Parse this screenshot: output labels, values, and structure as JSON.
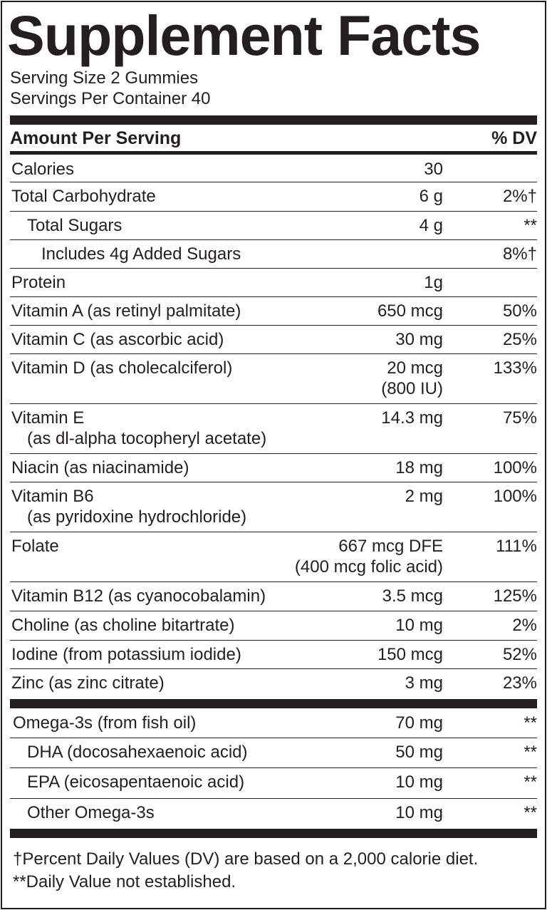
{
  "title": "Supplement Facts",
  "serving_size": "Serving Size 2 Gummies",
  "servings_per_container": "Servings Per Container 40",
  "header": {
    "amount": "Amount Per Serving",
    "dv": "% DV"
  },
  "section1": [
    {
      "name": "Calories",
      "amount": "30",
      "dv": "",
      "indent": 0
    },
    {
      "name": "Total Carbohydrate",
      "amount": "6 g",
      "dv": "2%†",
      "indent": 0
    },
    {
      "name": "Total Sugars",
      "amount": "4 g",
      "dv": "**",
      "indent": 1
    },
    {
      "name": "Includes 4g Added Sugars",
      "amount": "",
      "dv": "8%†",
      "indent": 2
    },
    {
      "name": "Protein",
      "amount": "1g",
      "dv": "",
      "indent": 0
    },
    {
      "name": "Vitamin A (as retinyl palmitate)",
      "amount": "650 mcg",
      "dv": "50%",
      "indent": 0
    },
    {
      "name": "Vitamin C (as ascorbic acid)",
      "amount": "30 mg",
      "dv": "25%",
      "indent": 0
    },
    {
      "name": "Vitamin D (as cholecalciferol)",
      "amount": "20 mcg",
      "amount2": "(800 IU)",
      "dv": "133%",
      "indent": 0
    },
    {
      "name": "Vitamin E",
      "sub": "(as dl-alpha tocopheryl acetate)",
      "amount": "14.3 mg",
      "dv": "75%",
      "indent": 0
    },
    {
      "name": "Niacin (as niacinamide)",
      "amount": "18 mg",
      "dv": "100%",
      "indent": 0
    },
    {
      "name": "Vitamin B6",
      "sub": "(as pyridoxine hydrochloride)",
      "amount": "2 mg",
      "dv": "100%",
      "indent": 0
    },
    {
      "name": "Folate",
      "amount": "667 mcg DFE",
      "amount2": "(400 mcg folic acid)",
      "dv": "111%",
      "indent": 0
    },
    {
      "name": "Vitamin B12 (as cyanocobalamin)",
      "amount": "3.5 mcg",
      "dv": "125%",
      "indent": 0
    },
    {
      "name": "Choline (as choline bitartrate)",
      "amount": "10 mg",
      "dv": "2%",
      "indent": 0
    },
    {
      "name": "Iodine (from potassium iodide)",
      "amount": "150 mcg",
      "dv": "52%",
      "indent": 0
    },
    {
      "name": "Zinc (as zinc citrate)",
      "amount": "3 mg",
      "dv": "23%",
      "indent": 0
    }
  ],
  "section2": [
    {
      "name": "Omega-3s (from fish oil)",
      "amount": "70 mg",
      "dv": "**",
      "indent": 0
    },
    {
      "name": "DHA (docosahexaenoic acid)",
      "amount": "50 mg",
      "dv": "**",
      "indent": 1
    },
    {
      "name": "EPA (eicosapentaenoic acid)",
      "amount": "10 mg",
      "dv": "**",
      "indent": 1
    },
    {
      "name": "Other Omega-3s",
      "amount": "10 mg",
      "dv": "**",
      "indent": 1
    }
  ],
  "footnotes": [
    "†Percent Daily Values (DV) are based on a 2,000 calorie diet.",
    "**Daily Value not established."
  ]
}
